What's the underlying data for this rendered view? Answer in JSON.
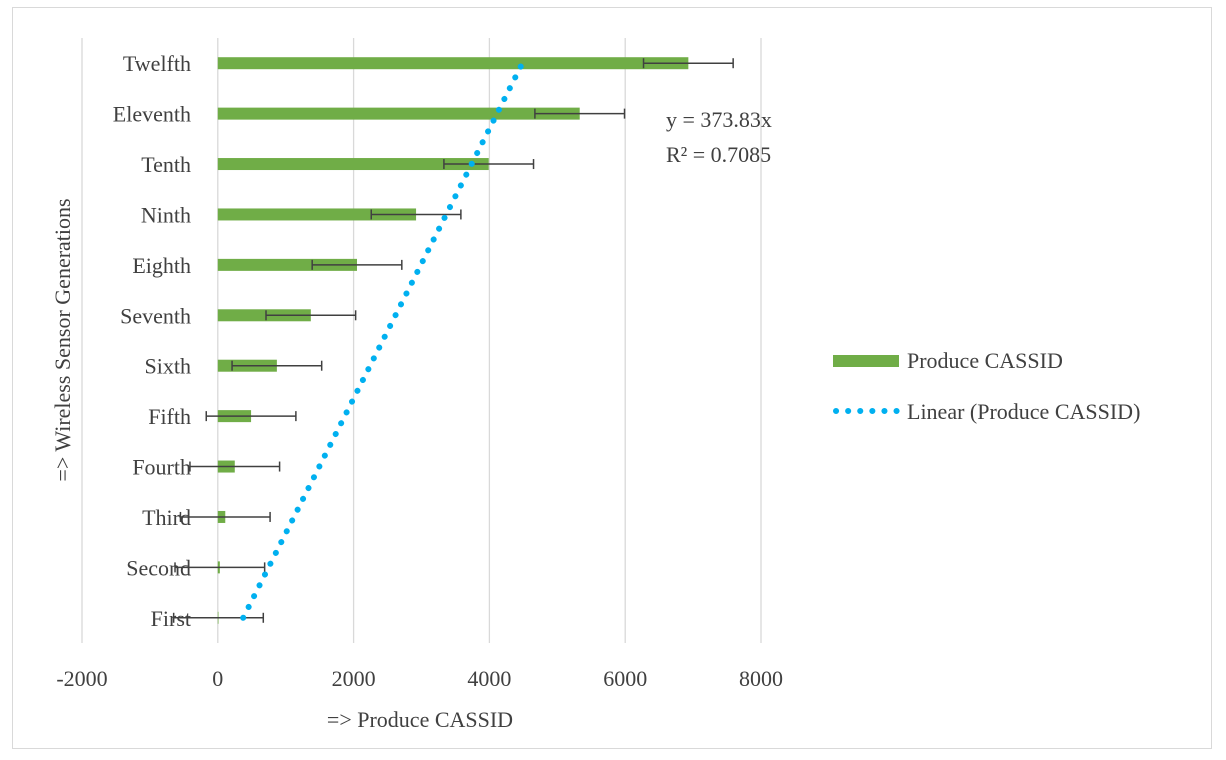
{
  "chart_data": {
    "type": "bar",
    "orientation": "horizontal",
    "title": "",
    "xlabel": "=> Produce CASSID",
    "ylabel": "=> Wireless Sensor Generations",
    "categories": [
      "First",
      "Second",
      "Third",
      "Fourth",
      "Fifth",
      "Sixth",
      "Seventh",
      "Eighth",
      "Ninth",
      "Tenth",
      "Eleventh",
      "Twelfth"
    ],
    "x_ticks": [
      "-2000",
      "0",
      "2000",
      "4000",
      "6000",
      "8000"
    ],
    "x_tick_values": [
      -2000,
      0,
      2000,
      4000,
      6000,
      8000
    ],
    "xlim": [
      -2000,
      8000
    ],
    "grid": "vertical",
    "legend_position": "right",
    "series": [
      {
        "name": "Produce CASSID",
        "type": "bar",
        "color": "#70ad47",
        "values": [
          10,
          30,
          110,
          250,
          490,
          870,
          1370,
          2050,
          2920,
          3990,
          5330,
          6930
        ],
        "error": 660
      },
      {
        "name": "Linear (Produce CASSID)",
        "type": "trendline",
        "color": "#00b0f0",
        "slope": 373.83
      }
    ],
    "annotations": {
      "equation": "y = 373.83x",
      "r_squared": "R² = 0.7085"
    }
  }
}
